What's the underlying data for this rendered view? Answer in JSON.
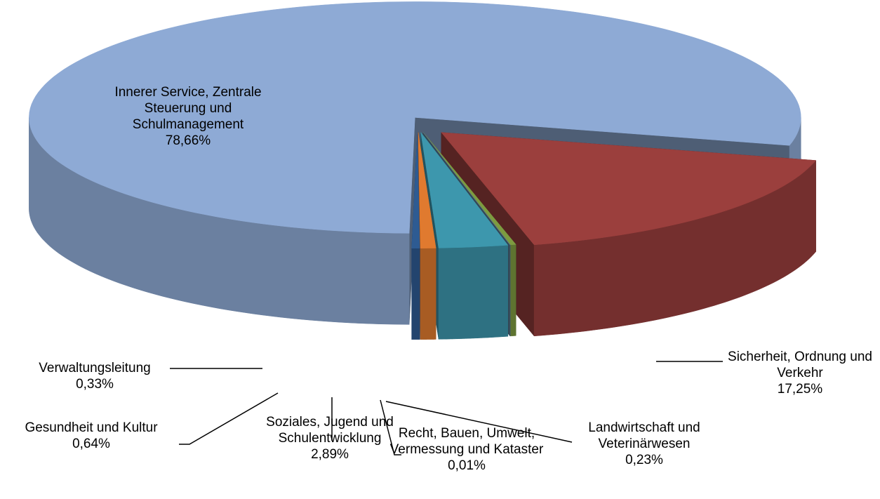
{
  "chart_data": {
    "type": "pie",
    "categories": [
      "Sicherheit, Ordnung und Verkehr",
      "Landwirtschaft und Veterinärwesen",
      "Recht, Bauen, Umwelt, Vermessung und Kataster",
      "Soziales, Jugend und Schulentwicklung",
      "Gesundheit und Kultur",
      "Verwaltungsleitung",
      "Innerer Service, Zentrale Steuerung und Schulmanagement"
    ],
    "values": [
      17.25,
      0.23,
      0.01,
      2.89,
      0.64,
      0.33,
      78.66
    ],
    "value_labels": [
      "17,25%",
      "0,23%",
      "0,01%",
      "2,89%",
      "0,64%",
      "0,33%",
      "78,66%"
    ],
    "colors": [
      "#9b3f3d",
      "#7d9b40",
      "#5f7f96",
      "#3d97ad",
      "#e07a2f",
      "#2e5b92",
      "#8eaad5"
    ]
  }
}
